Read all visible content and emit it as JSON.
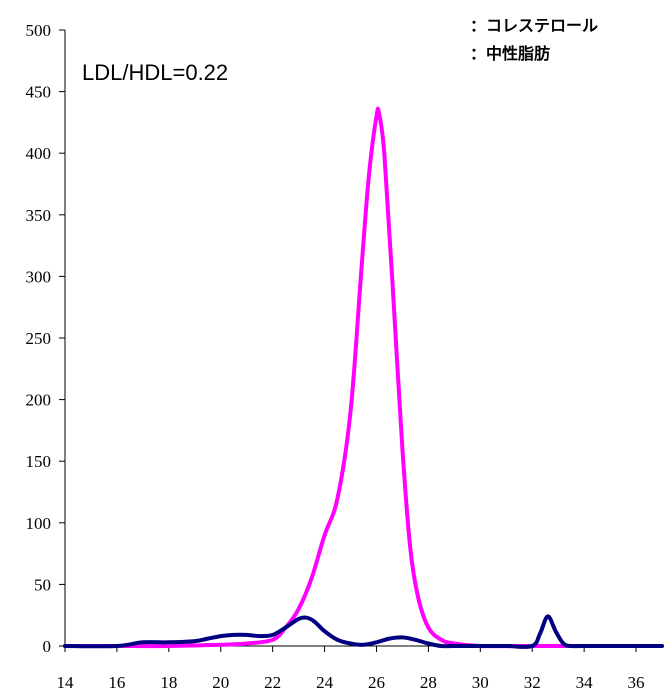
{
  "chart_data": {
    "type": "line",
    "title": "",
    "xlabel": "",
    "ylabel": "",
    "xlim": [
      14,
      37
    ],
    "ylim": [
      0,
      500
    ],
    "x_ticks": [
      "14",
      "16",
      "18",
      "20",
      "22",
      "24",
      "26",
      "28",
      "30",
      "32",
      "34",
      "36"
    ],
    "y_ticks": [
      "0",
      "50",
      "100",
      "150",
      "200",
      "250",
      "300",
      "350",
      "400",
      "450",
      "500"
    ],
    "grid": false,
    "legend_position": "top-right",
    "annotation": "LDL/HDL=0.22",
    "legend": [
      {
        "label": "：コレステロール",
        "color": "#ff00ff"
      },
      {
        "label": "：中性脂肪",
        "color": "#000080"
      }
    ],
    "series": [
      {
        "color": "#ff00ff",
        "x": [
          14,
          16,
          18,
          20,
          21,
          22,
          22.5,
          23,
          23.5,
          24,
          24.5,
          25,
          25.4,
          25.7,
          26,
          26.1,
          26.3,
          26.6,
          27,
          27.3,
          27.6,
          28,
          28.5,
          29,
          30,
          32,
          34,
          36,
          37
        ],
        "y": [
          0,
          0,
          0,
          1,
          2,
          5,
          15,
          30,
          55,
          90,
          120,
          190,
          300,
          380,
          430,
          432,
          400,
          300,
          160,
          80,
          40,
          15,
          5,
          2,
          0,
          0,
          0,
          0,
          0
        ]
      },
      {
        "color": "#000080",
        "x": [
          14,
          16,
          17,
          18,
          19,
          19.5,
          20,
          20.5,
          21,
          21.5,
          22,
          22.5,
          23,
          23.3,
          23.6,
          24,
          24.5,
          25,
          25.5,
          26,
          26.5,
          27,
          27.5,
          28,
          28.5,
          29,
          30,
          31,
          32,
          32.3,
          32.6,
          32.9,
          33.2,
          33.5,
          34,
          36,
          37
        ],
        "y": [
          0,
          0,
          3,
          3,
          4,
          6,
          8,
          9,
          9,
          8,
          9,
          15,
          22,
          23,
          20,
          12,
          5,
          2,
          1,
          3,
          6,
          7,
          5,
          2,
          0,
          0,
          0,
          0,
          0,
          10,
          24,
          12,
          2,
          0,
          0,
          0,
          0
        ]
      }
    ]
  }
}
